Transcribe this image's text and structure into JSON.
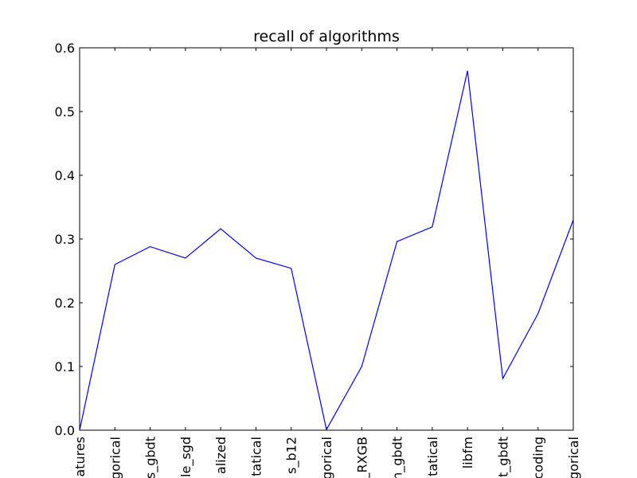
{
  "chart_data": {
    "type": "line",
    "title": "recall of algorithms",
    "xlabel": "",
    "ylabel": "",
    "ylim": [
      0.0,
      0.6
    ],
    "y_ticks": [
      "0.0",
      "0.1",
      "0.2",
      "0.3",
      "0.4",
      "0.5",
      "0.6"
    ],
    "categories": [
      "atures",
      "gorical",
      "s_gbdt",
      "le_sgd",
      "alized",
      "tatical",
      "s_b12",
      "gorical",
      "_RXGB",
      "n_gbdt",
      "tatical",
      "libfm",
      "t_gbdt",
      "coding",
      "gorical"
    ],
    "series": [
      {
        "color": "#0000ff",
        "values": [
          0.0,
          0.26,
          0.288,
          0.27,
          0.316,
          0.27,
          0.254,
          0.001,
          0.1,
          0.296,
          0.319,
          0.564,
          0.081,
          0.183,
          0.33
        ]
      }
    ],
    "grid": false,
    "legend": "none"
  }
}
